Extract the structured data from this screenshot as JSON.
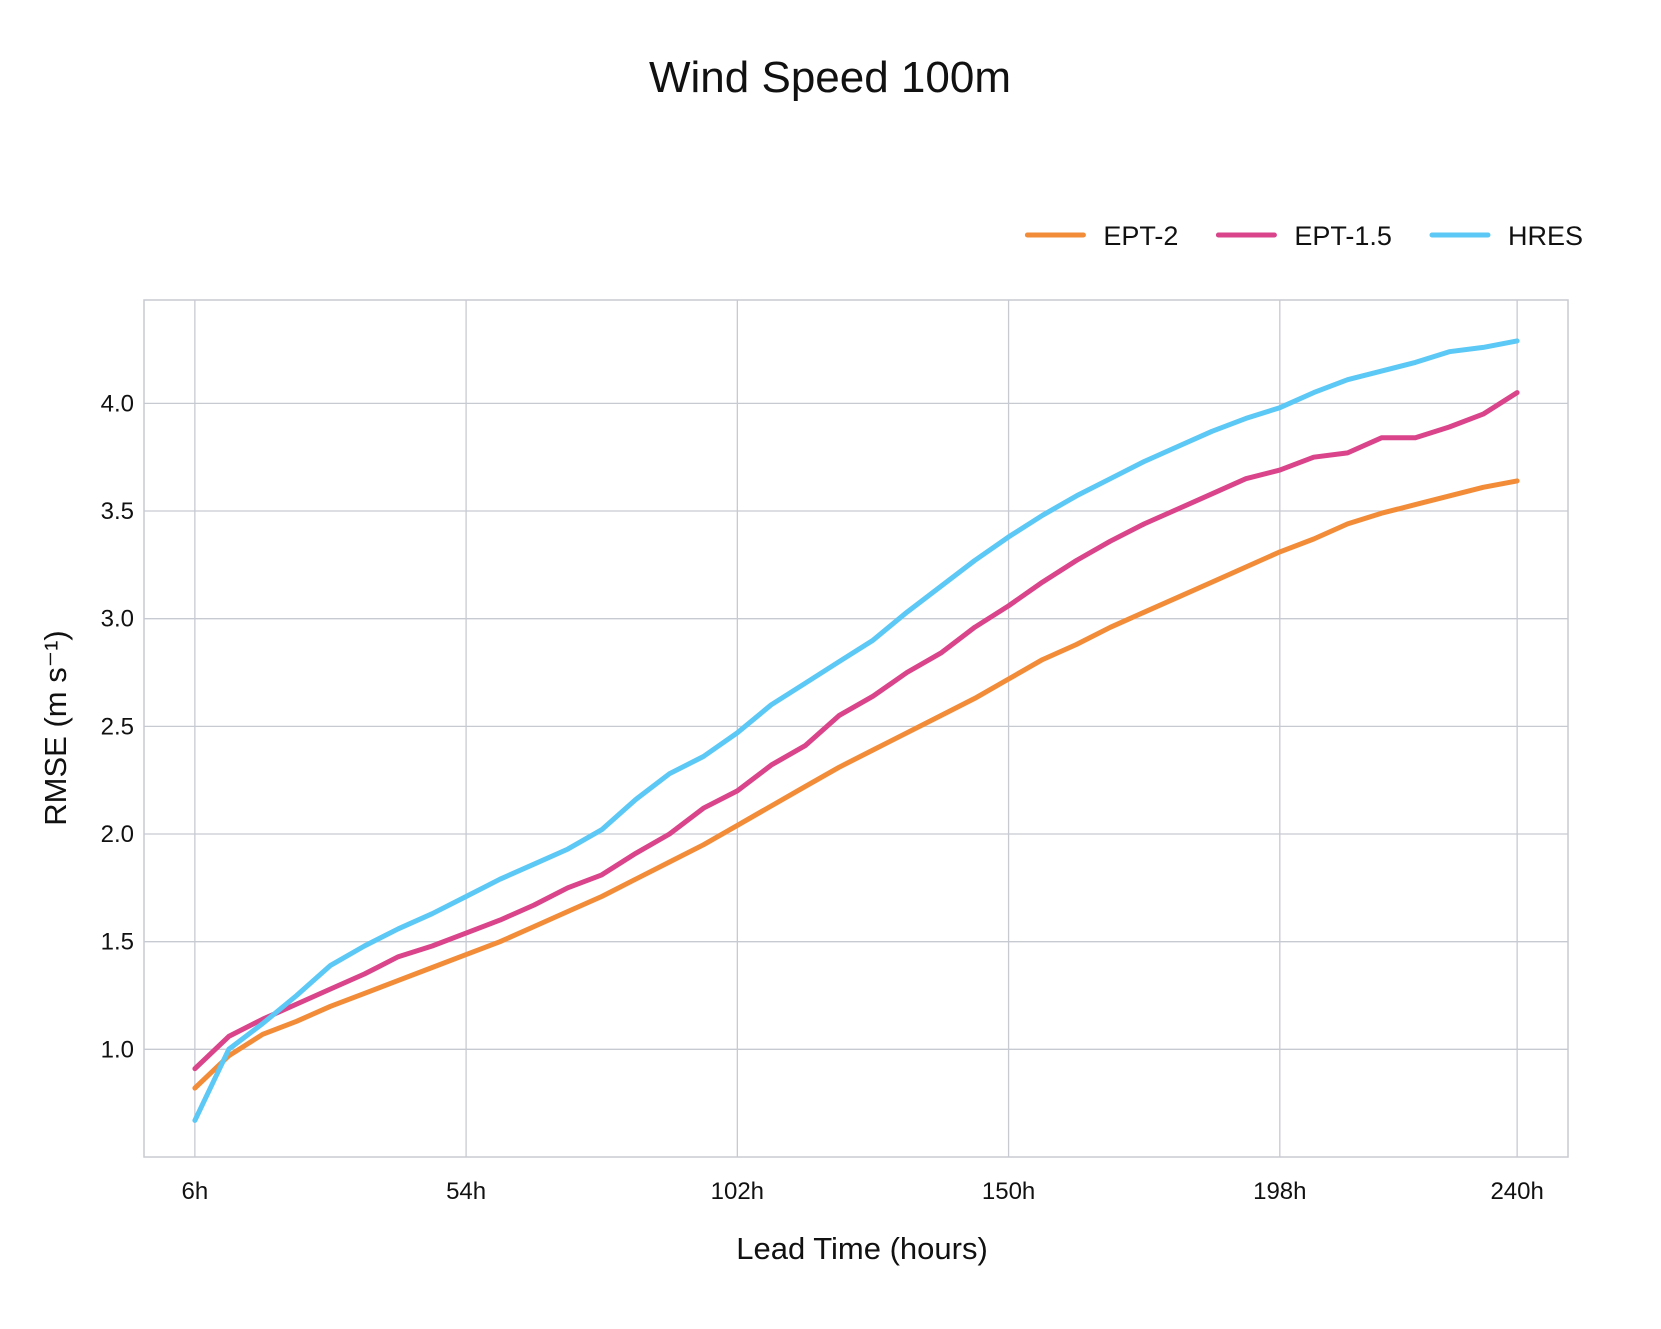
{
  "chart_data": {
    "type": "line",
    "title": "Wind Speed 100m",
    "xlabel": "Lead Time (hours)",
    "ylabel": "RMSE (m s⁻¹)",
    "xlim": [
      -3,
      249
    ],
    "ylim": [
      0.5,
      4.48
    ],
    "xticks": [
      6,
      54,
      102,
      150,
      198,
      240
    ],
    "xtick_labels": [
      "6h",
      "54h",
      "102h",
      "150h",
      "198h",
      "240h"
    ],
    "yticks": [
      1.0,
      1.5,
      2.0,
      2.5,
      3.0,
      3.5,
      4.0
    ],
    "ytick_labels": [
      "1.0",
      "1.5",
      "2.0",
      "2.5",
      "3.0",
      "3.5",
      "4.0"
    ],
    "grid": true,
    "legend_position": "top-right",
    "x": [
      6,
      12,
      18,
      24,
      30,
      36,
      42,
      48,
      54,
      60,
      66,
      72,
      78,
      84,
      90,
      96,
      102,
      108,
      114,
      120,
      126,
      132,
      138,
      144,
      150,
      156,
      162,
      168,
      174,
      180,
      186,
      192,
      198,
      204,
      210,
      216,
      222,
      228,
      234,
      240
    ],
    "series": [
      {
        "name": "EPT-2",
        "color": "#f28c38",
        "values": [
          0.82,
          0.97,
          1.07,
          1.13,
          1.2,
          1.26,
          1.32,
          1.38,
          1.44,
          1.5,
          1.57,
          1.64,
          1.71,
          1.79,
          1.87,
          1.95,
          2.04,
          2.13,
          2.22,
          2.31,
          2.39,
          2.47,
          2.55,
          2.63,
          2.72,
          2.81,
          2.88,
          2.96,
          3.03,
          3.1,
          3.17,
          3.24,
          3.31,
          3.37,
          3.44,
          3.49,
          3.53,
          3.57,
          3.61,
          3.64
        ]
      },
      {
        "name": "EPT-1.5",
        "color": "#d9448a",
        "values": [
          0.91,
          1.06,
          1.14,
          1.21,
          1.28,
          1.35,
          1.43,
          1.48,
          1.54,
          1.6,
          1.67,
          1.75,
          1.81,
          1.91,
          2.0,
          2.12,
          2.2,
          2.32,
          2.41,
          2.55,
          2.64,
          2.75,
          2.84,
          2.96,
          3.06,
          3.17,
          3.27,
          3.36,
          3.44,
          3.51,
          3.58,
          3.65,
          3.69,
          3.75,
          3.77,
          3.84,
          3.84,
          3.89,
          3.95,
          4.05
        ]
      },
      {
        "name": "HRES",
        "color": "#5bc8f5",
        "values": [
          0.67,
          1.0,
          1.12,
          1.25,
          1.39,
          1.48,
          1.56,
          1.63,
          1.71,
          1.79,
          1.86,
          1.93,
          2.02,
          2.16,
          2.28,
          2.36,
          2.47,
          2.6,
          2.7,
          2.8,
          2.9,
          3.03,
          3.15,
          3.27,
          3.38,
          3.48,
          3.57,
          3.65,
          3.73,
          3.8,
          3.87,
          3.93,
          3.98,
          4.05,
          4.11,
          4.15,
          4.19,
          4.24,
          4.26,
          4.29
        ]
      }
    ]
  }
}
